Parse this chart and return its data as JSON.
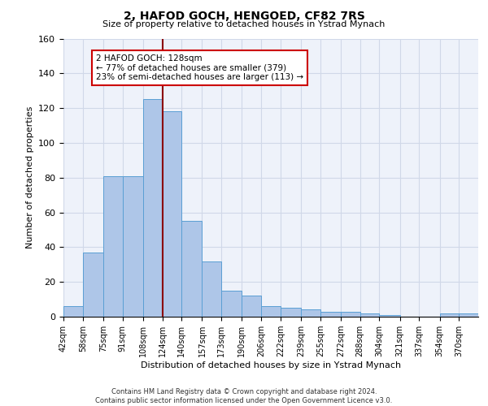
{
  "title": "2, HAFOD GOCH, HENGOED, CF82 7RS",
  "subtitle": "Size of property relative to detached houses in Ystrad Mynach",
  "xlabel": "Distribution of detached houses by size in Ystrad Mynach",
  "ylabel": "Number of detached properties",
  "bar_color": "#aec6e8",
  "bar_edge_color": "#5a9fd4",
  "vline_color": "#8b0000",
  "vline_x_index": 5,
  "annotation_text": "2 HAFOD GOCH: 128sqm\n← 77% of detached houses are smaller (379)\n23% of semi-detached houses are larger (113) →",
  "annotation_box_color": "white",
  "annotation_box_edge": "#cc0000",
  "ylim": [
    0,
    160
  ],
  "yticks": [
    0,
    20,
    40,
    60,
    80,
    100,
    120,
    140,
    160
  ],
  "grid_color": "#d0d8e8",
  "bg_color": "#eef2fa",
  "footer": "Contains HM Land Registry data © Crown copyright and database right 2024.\nContains public sector information licensed under the Open Government Licence v3.0.",
  "bin_edges": [
    42,
    58,
    75,
    91,
    108,
    124,
    140,
    157,
    173,
    190,
    206,
    222,
    239,
    255,
    272,
    288,
    304,
    321,
    337,
    354,
    370
  ],
  "bin_heights": [
    6,
    37,
    81,
    81,
    125,
    118,
    55,
    32,
    15,
    12,
    6,
    5,
    4,
    3,
    3,
    2,
    1,
    0,
    0,
    2,
    2
  ],
  "categories": [
    "42sqm",
    "58sqm",
    "75sqm",
    "91sqm",
    "108sqm",
    "124sqm",
    "140sqm",
    "157sqm",
    "173sqm",
    "190sqm",
    "206sqm",
    "222sqm",
    "239sqm",
    "255sqm",
    "272sqm",
    "288sqm",
    "304sqm",
    "321sqm",
    "337sqm",
    "354sqm",
    "370sqm"
  ]
}
